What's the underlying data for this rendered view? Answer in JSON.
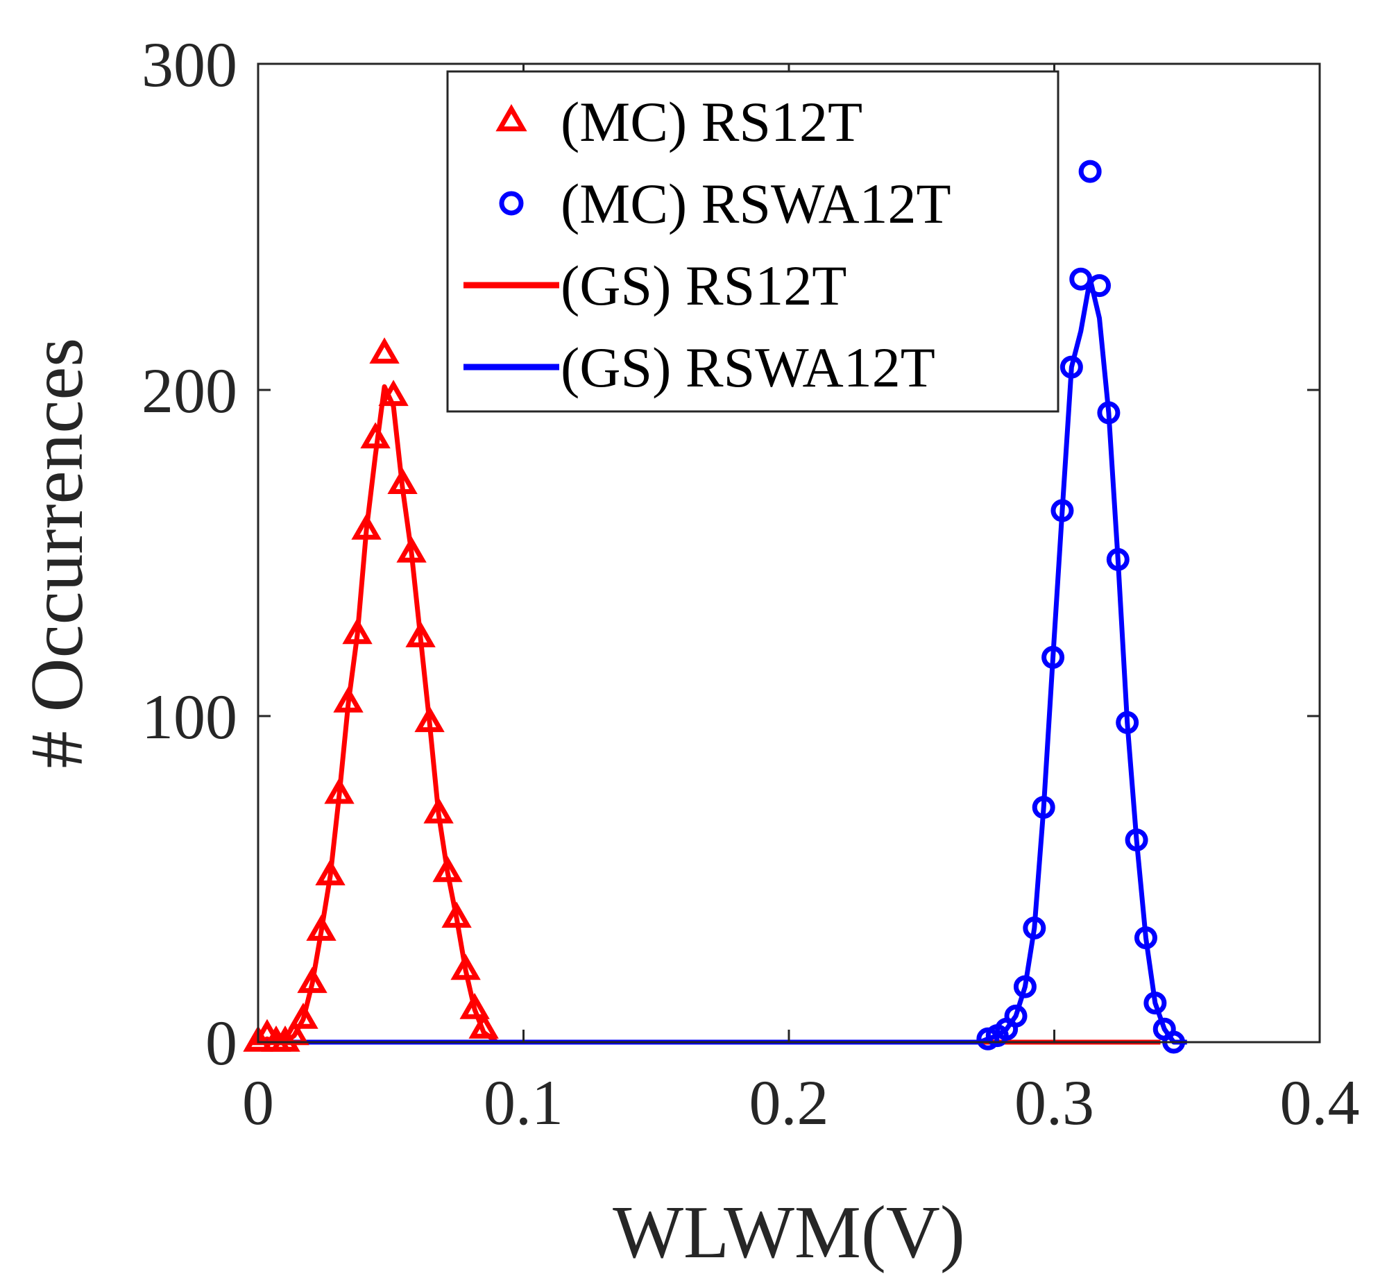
{
  "chart_data": {
    "type": "line",
    "title": "",
    "xlabel": "WLWM(V)",
    "ylabel": "# Occurrences",
    "xlim": [
      0,
      0.4
    ],
    "ylim": [
      0,
      300
    ],
    "xticks": [
      "0",
      "0.1",
      "0.2",
      "0.3",
      "0.4"
    ],
    "yticks": [
      "0",
      "100",
      "200",
      "300"
    ],
    "grid": false,
    "legend_location": "top-center",
    "series": [
      {
        "name": "(MC) RS12T",
        "kind": "markers",
        "marker": "triangle",
        "color": "#ff0000",
        "x": [
          0.0,
          0.0034,
          0.0068,
          0.0102,
          0.0136,
          0.017,
          0.0204,
          0.0238,
          0.0272,
          0.0306,
          0.034,
          0.0374,
          0.0408,
          0.0442,
          0.0476,
          0.051,
          0.0544,
          0.0578,
          0.0612,
          0.0646,
          0.068,
          0.0714,
          0.0748,
          0.0782,
          0.0816,
          0.085
        ],
        "y": [
          0,
          2,
          0,
          0,
          2,
          7,
          18,
          34,
          51,
          76,
          104,
          125,
          157,
          185,
          211,
          198,
          171,
          150,
          124,
          98,
          70,
          52,
          38,
          22,
          10,
          4
        ]
      },
      {
        "name": "(MC) RSWA12T",
        "kind": "markers",
        "marker": "circle",
        "color": "#0000ff",
        "x": [
          0.275,
          0.2785,
          0.282,
          0.2855,
          0.289,
          0.2925,
          0.296,
          0.2995,
          0.303,
          0.3065,
          0.31,
          0.3135,
          0.317,
          0.3205,
          0.324,
          0.3275,
          0.331,
          0.3345,
          0.338,
          0.3415,
          0.345
        ],
        "y": [
          1,
          2,
          4,
          8,
          17,
          35,
          72,
          118,
          163,
          207,
          234,
          267,
          232,
          193,
          148,
          98,
          62,
          32,
          12,
          4,
          0
        ]
      },
      {
        "name": "(GS) RS12T",
        "kind": "line",
        "color": "#ff0000",
        "x": [
          0.0,
          0.0034,
          0.0068,
          0.0102,
          0.0136,
          0.017,
          0.0204,
          0.0238,
          0.0272,
          0.0306,
          0.034,
          0.0374,
          0.0408,
          0.0442,
          0.0476,
          0.051,
          0.0544,
          0.0578,
          0.0612,
          0.0646,
          0.068,
          0.0714,
          0.0748,
          0.0782,
          0.0816,
          0.085,
          0.09,
          0.285,
          0.33,
          0.34
        ],
        "y": [
          0,
          1,
          0,
          0,
          2,
          7,
          18,
          34,
          51,
          76,
          104,
          125,
          157,
          180,
          201,
          195,
          170,
          150,
          124,
          98,
          70,
          52,
          38,
          22,
          10,
          3,
          0,
          0,
          0,
          0
        ]
      },
      {
        "name": "(GS) RSWA12T",
        "kind": "line",
        "color": "#0000ff",
        "x": [
          0.0,
          0.1,
          0.2,
          0.272,
          0.275,
          0.2785,
          0.282,
          0.2855,
          0.289,
          0.2925,
          0.296,
          0.2995,
          0.303,
          0.3065,
          0.31,
          0.3135,
          0.317,
          0.3205,
          0.324,
          0.3275,
          0.331,
          0.3345,
          0.338,
          0.3415,
          0.345,
          0.35
        ],
        "y": [
          0,
          0,
          0,
          0,
          1,
          2,
          4,
          8,
          17,
          35,
          72,
          118,
          163,
          207,
          218,
          234,
          222,
          193,
          148,
          98,
          62,
          32,
          12,
          4,
          0,
          0
        ]
      }
    ]
  }
}
